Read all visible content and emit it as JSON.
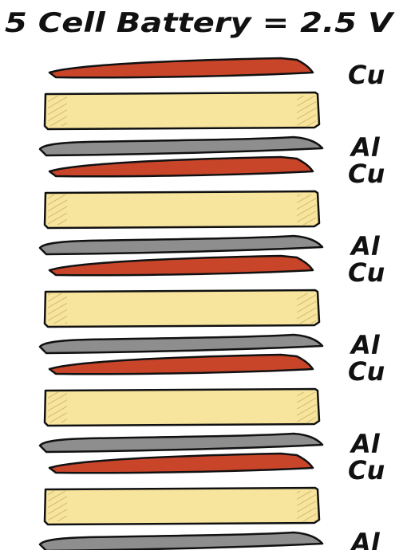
{
  "title": "5 Cell Battery = 2.5 V",
  "colors": {
    "copper": "#c9452a",
    "electrolyte": "#f7e59e",
    "aluminum": "#8e8e8e",
    "outline": "#111111"
  },
  "cells": [
    {
      "copper_label": "Cu",
      "aluminum_label": "Al"
    },
    {
      "copper_label": "Cu",
      "aluminum_label": "Al"
    },
    {
      "copper_label": "Cu",
      "aluminum_label": "Al"
    },
    {
      "copper_label": "Cu",
      "aluminum_label": "Al"
    },
    {
      "copper_label": "Cu",
      "aluminum_label": "Al"
    }
  ]
}
